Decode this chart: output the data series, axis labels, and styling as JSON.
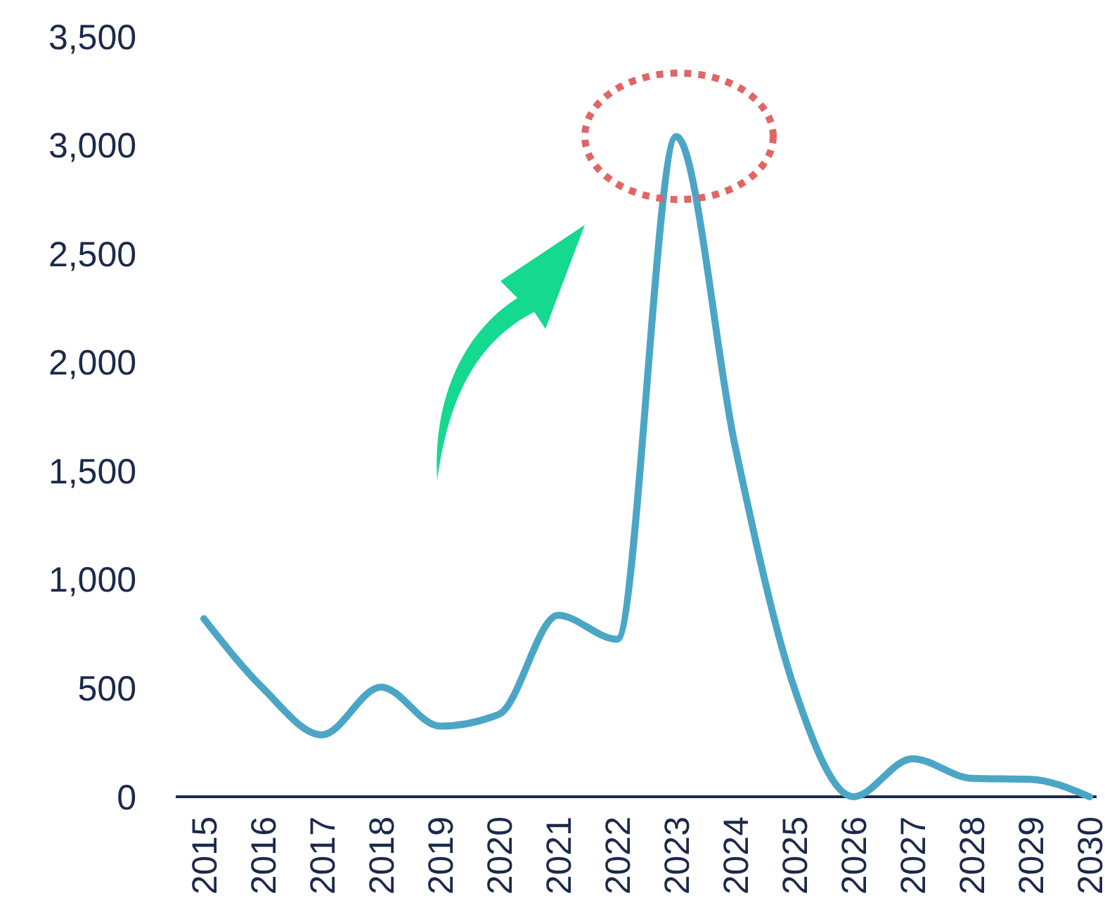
{
  "chart_data": {
    "type": "line",
    "categories": [
      "2015",
      "2016",
      "2017",
      "2018",
      "2019",
      "2020",
      "2021",
      "2022",
      "2023",
      "2024",
      "2025",
      "2026",
      "2027",
      "2028",
      "2029",
      "2030"
    ],
    "series": [
      {
        "color": "#4ba6c6",
        "values": [
          820,
          500,
          285,
          505,
          325,
          380,
          835,
          725,
          3040,
          1610,
          500,
          0,
          175,
          85,
          80,
          0
        ]
      }
    ],
    "ylim": [
      0,
      3500
    ],
    "yticks": [
      0,
      500,
      {
        "value": 1000,
        "label": "1,000"
      },
      {
        "value": 1500,
        "label": "1,500"
      },
      {
        "value": 2000,
        "label": "2,000"
      },
      {
        "value": 2500,
        "label": "2,500"
      },
      {
        "value": 3000,
        "label": "3,000"
      },
      {
        "value": 3500,
        "label": "3,500"
      }
    ],
    "grid": false,
    "marker": "none",
    "line_style": "solid"
  }
}
